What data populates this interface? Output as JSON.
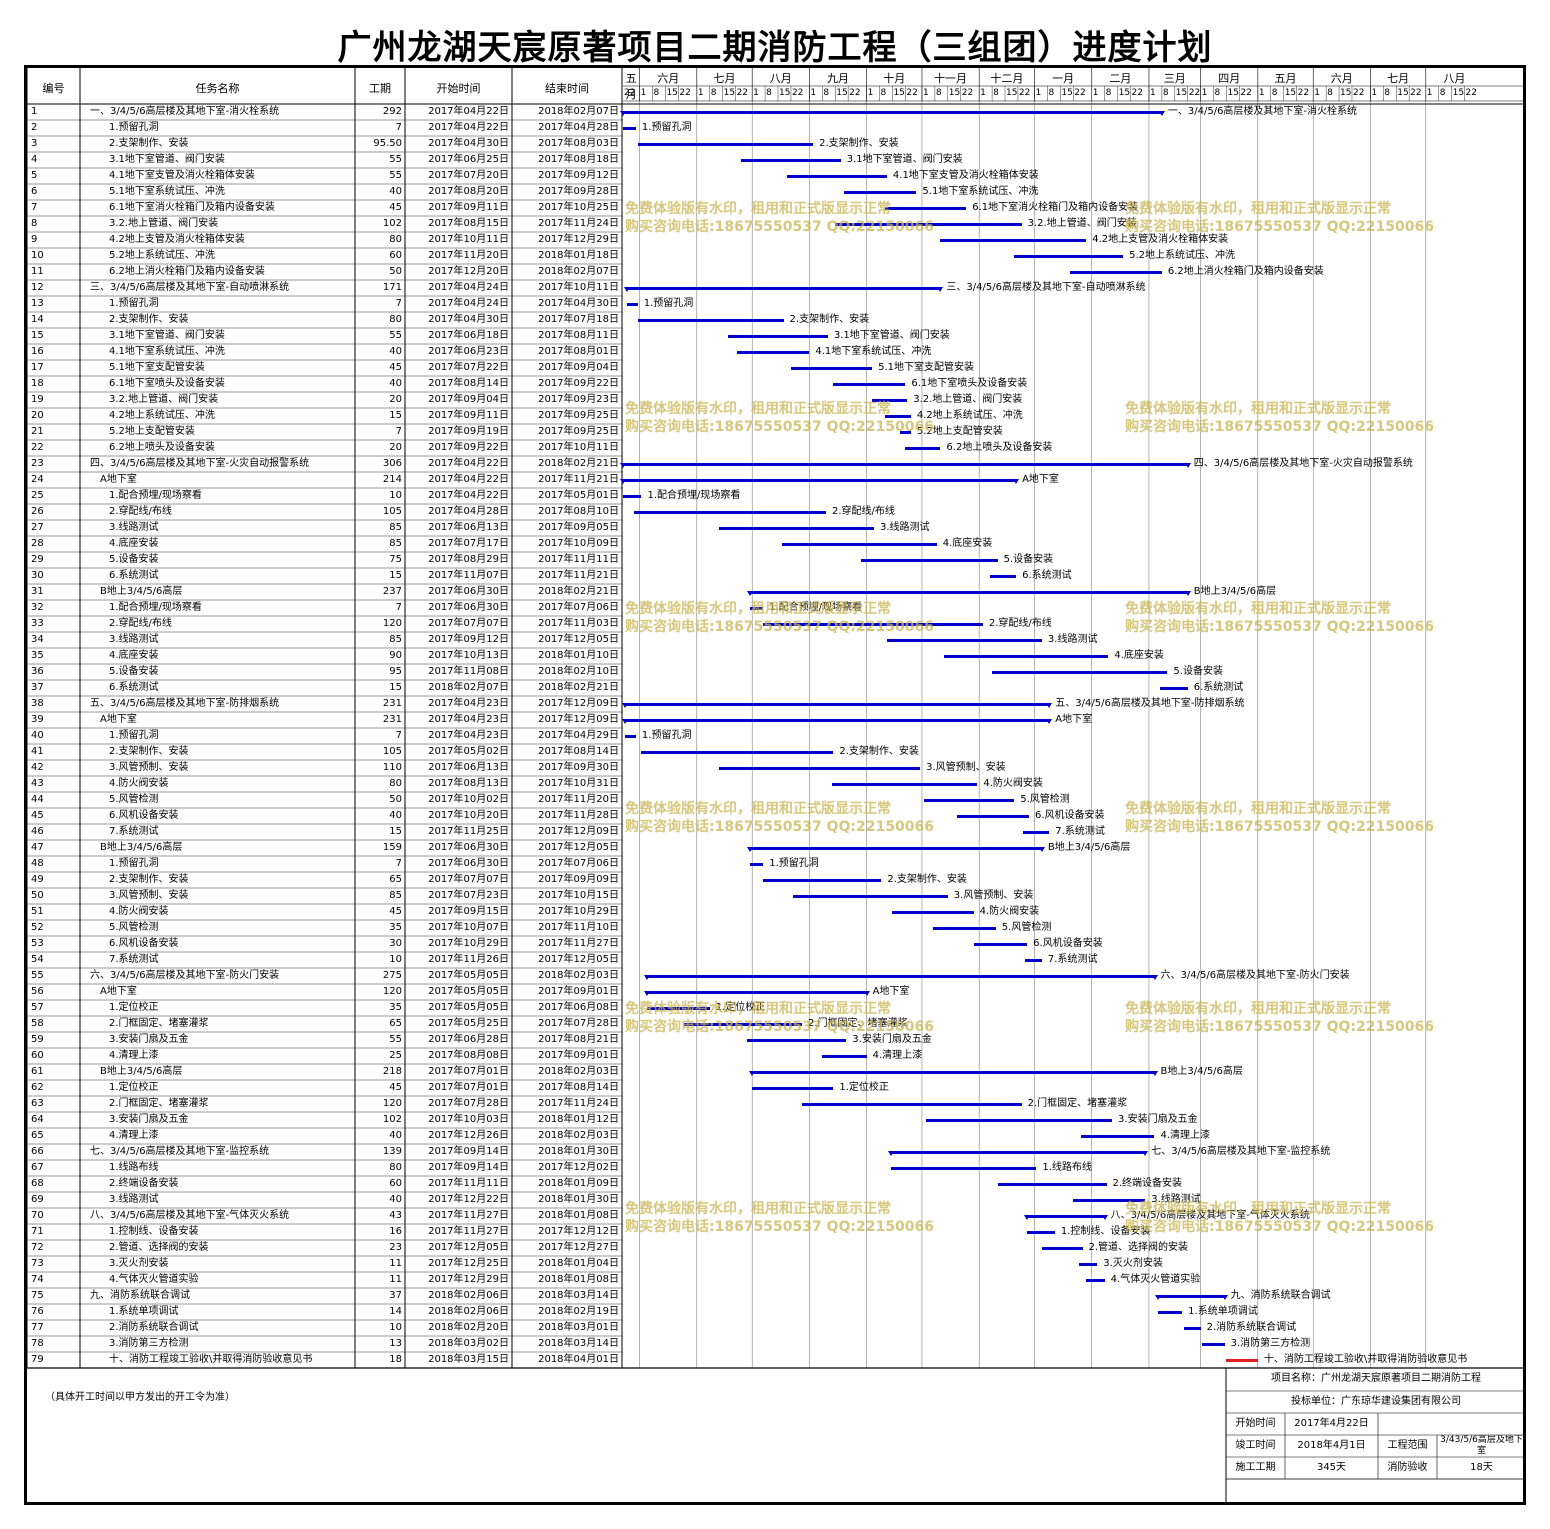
{
  "title": "广州龙湖天宸原著项目二期消防工程（三组团）进度计划",
  "columns": {
    "id": "编号",
    "name": "任务名称",
    "duration": "工期",
    "start": "开始时间",
    "end": "结束时间"
  },
  "months": [
    "五月",
    "六月",
    "七月",
    "八月",
    "九月",
    "十月",
    "十一月",
    "十二月",
    "一月",
    "二月",
    "三月",
    "四月",
    "五月",
    "六月",
    "七月",
    "八月"
  ],
  "week_ticks": [
    "22",
    "1",
    "8",
    "15",
    "22"
  ],
  "tasks": [
    [
      "1",
      "一、3/4/5/6高层楼及其地下室-消火栓系统",
      "292",
      "2017年04月22日",
      "2018年02月07日",
      0,
      292,
      "sum"
    ],
    [
      "2",
      "1.预留孔洞",
      "7",
      "2017年04月22日",
      "2017年04月28日",
      0,
      7,
      ""
    ],
    [
      "3",
      "2.支架制作、安装",
      "95.50",
      "2017年04月30日",
      "2017年08月03日",
      8,
      103,
      ""
    ],
    [
      "4",
      "3.1地下室管道、阀门安装",
      "55",
      "2017年06月25日",
      "2017年08月18日",
      64,
      118,
      ""
    ],
    [
      "5",
      "4.1地下室支管及消火栓箱体安装",
      "55",
      "2017年07月20日",
      "2017年09月12日",
      89,
      143,
      ""
    ],
    [
      "6",
      "5.1地下室系统试压、冲洗",
      "40",
      "2017年08月20日",
      "2017年09月28日",
      120,
      159,
      ""
    ],
    [
      "7",
      "6.1地下室消火栓箱门及箱内设备安装",
      "45",
      "2017年09月11日",
      "2017年10月25日",
      142,
      186,
      ""
    ],
    [
      "8",
      "3.2.地上管道、阀门安装",
      "102",
      "2017年08月15日",
      "2017年11月24日",
      115,
      216,
      ""
    ],
    [
      "9",
      "4.2地上支管及消火栓箱体安装",
      "80",
      "2017年10月11日",
      "2017年12月29日",
      172,
      251,
      ""
    ],
    [
      "10",
      "5.2地上系统试压、冲洗",
      "60",
      "2017年11月20日",
      "2018年01月18日",
      212,
      271,
      ""
    ],
    [
      "11",
      "6.2地上消火栓箱门及箱内设备安装",
      "50",
      "2017年12月20日",
      "2018年02月07日",
      242,
      292,
      ""
    ],
    [
      "12",
      "三、3/4/5/6高层楼及其地下室-自动喷淋系统",
      "171",
      "2017年04月24日",
      "2017年10月11日",
      2,
      172,
      "sum"
    ],
    [
      "13",
      "1.预留孔洞",
      "7",
      "2017年04月24日",
      "2017年04月30日",
      2,
      8,
      ""
    ],
    [
      "14",
      "2.支架制作、安装",
      "80",
      "2017年04月30日",
      "2017年07月18日",
      8,
      87,
      ""
    ],
    [
      "15",
      "3.1地下室管道、阀门安装",
      "55",
      "2017年06月18日",
      "2017年08月11日",
      57,
      111,
      ""
    ],
    [
      "16",
      "4.1地下室系统试压、冲洗",
      "40",
      "2017年06月23日",
      "2017年08月01日",
      62,
      101,
      ""
    ],
    [
      "17",
      "5.1地下室支配管安装",
      "45",
      "2017年07月22日",
      "2017年09月04日",
      91,
      135,
      ""
    ],
    [
      "18",
      "6.1地下室喷头及设备安装",
      "40",
      "2017年08月14日",
      "2017年09月22日",
      114,
      153,
      ""
    ],
    [
      "19",
      "3.2.地上管道、阀门安装",
      "20",
      "2017年09月04日",
      "2017年09月23日",
      135,
      154,
      ""
    ],
    [
      "20",
      "4.2地上系统试压、冲洗",
      "15",
      "2017年09月11日",
      "2017年09月25日",
      142,
      156,
      ""
    ],
    [
      "21",
      "5.2地上支配管安装",
      "7",
      "2017年09月19日",
      "2017年09月25日",
      150,
      156,
      ""
    ],
    [
      "22",
      "6.2地上喷头及设备安装",
      "20",
      "2017年09月22日",
      "2017年10月11日",
      153,
      172,
      ""
    ],
    [
      "23",
      "四、3/4/5/6高层楼及其地下室-火灾自动报警系统",
      "306",
      "2017年04月22日",
      "2018年02月21日",
      0,
      306,
      "sum"
    ],
    [
      "24",
      "A地下室",
      "214",
      "2017年04月22日",
      "2017年11月21日",
      0,
      213,
      "sum"
    ],
    [
      "25",
      "1.配合预埋/现场察看",
      "10",
      "2017年04月22日",
      "2017年05月01日",
      0,
      10,
      ""
    ],
    [
      "26",
      "2.穿配线/布线",
      "105",
      "2017年04月28日",
      "2017年08月10日",
      6,
      110,
      ""
    ],
    [
      "27",
      "3.线路测试",
      "85",
      "2017年06月13日",
      "2017年09月05日",
      52,
      136,
      ""
    ],
    [
      "28",
      "4.底座安装",
      "85",
      "2017年07月17日",
      "2017年10月09日",
      86,
      170,
      ""
    ],
    [
      "29",
      "5.设备安装",
      "75",
      "2017年08月29日",
      "2017年11月11日",
      129,
      203,
      ""
    ],
    [
      "30",
      "6.系统测试",
      "15",
      "2017年11月07日",
      "2017年11月21日",
      199,
      213,
      ""
    ],
    [
      "31",
      "B地上3/4/5/6高层",
      "237",
      "2017年06月30日",
      "2018年02月21日",
      69,
      306,
      "sum"
    ],
    [
      "32",
      "1.配合预埋/现场察看",
      "7",
      "2017年06月30日",
      "2017年07月06日",
      69,
      76,
      ""
    ],
    [
      "33",
      "2.穿配线/布线",
      "120",
      "2017年07月07日",
      "2017年11月03日",
      76,
      195,
      ""
    ],
    [
      "34",
      "3.线路测试",
      "85",
      "2017年09月12日",
      "2017年12月05日",
      143,
      227,
      ""
    ],
    [
      "35",
      "4.底座安装",
      "90",
      "2017年10月13日",
      "2018年01月10日",
      174,
      263,
      ""
    ],
    [
      "36",
      "5.设备安装",
      "95",
      "2017年11月08日",
      "2018年02月10日",
      200,
      295,
      ""
    ],
    [
      "37",
      "6.系统测试",
      "15",
      "2018年02月07日",
      "2018年02月21日",
      291,
      306,
      ""
    ],
    [
      "38",
      "五、3/4/5/6高层楼及其地下室-防排烟系统",
      "231",
      "2017年04月23日",
      "2017年12月09日",
      1,
      231,
      "sum"
    ],
    [
      "39",
      "A地下室",
      "231",
      "2017年04月23日",
      "2017年12月09日",
      1,
      231,
      "sum"
    ],
    [
      "40",
      "1.预留孔洞",
      "7",
      "2017年04月23日",
      "2017年04月29日",
      1,
      7,
      ""
    ],
    [
      "41",
      "2.支架制作、安装",
      "105",
      "2017年05月02日",
      "2017年08月14日",
      10,
      114,
      ""
    ],
    [
      "42",
      "3.风管预制、安装",
      "110",
      "2017年06月13日",
      "2017年09月30日",
      52,
      161,
      ""
    ],
    [
      "43",
      "4.防火阀安装",
      "80",
      "2017年08月13日",
      "2017年10月31日",
      113,
      192,
      ""
    ],
    [
      "44",
      "5.风管检测",
      "50",
      "2017年10月02日",
      "2017年11月20日",
      163,
      212,
      ""
    ],
    [
      "45",
      "6.风机设备安装",
      "40",
      "2017年10月20日",
      "2017年11月28日",
      181,
      220,
      ""
    ],
    [
      "46",
      "7.系统测试",
      "15",
      "2017年11月25日",
      "2017年12月09日",
      217,
      231,
      ""
    ],
    [
      "47",
      "B地上3/4/5/6高层",
      "159",
      "2017年06月30日",
      "2017年12月05日",
      69,
      227,
      "sum"
    ],
    [
      "48",
      "1.预留孔洞",
      "7",
      "2017年06月30日",
      "2017年07月06日",
      69,
      76,
      ""
    ],
    [
      "49",
      "2.支架制作、安装",
      "65",
      "2017年07月07日",
      "2017年09月09日",
      76,
      140,
      ""
    ],
    [
      "50",
      "3.风管预制、安装",
      "85",
      "2017年07月23日",
      "2017年10月15日",
      92,
      176,
      ""
    ],
    [
      "51",
      "4.防火阀安装",
      "45",
      "2017年09月15日",
      "2017年10月29日",
      146,
      190,
      ""
    ],
    [
      "52",
      "5.风管检测",
      "35",
      "2017年10月07日",
      "2017年11月10日",
      168,
      202,
      ""
    ],
    [
      "53",
      "6.风机设备安装",
      "30",
      "2017年10月29日",
      "2017年11月27日",
      190,
      219,
      ""
    ],
    [
      "54",
      "7.系统测试",
      "10",
      "2017年11月26日",
      "2017年12月05日",
      218,
      227,
      ""
    ],
    [
      "55",
      "六、3/4/5/6高层楼及其地下室-防火门安装",
      "275",
      "2017年05月05日",
      "2018年02月03日",
      13,
      288,
      "sum"
    ],
    [
      "56",
      "A地下室",
      "120",
      "2017年05月05日",
      "2017年09月01日",
      13,
      132,
      "sum"
    ],
    [
      "57",
      "1.定位校正",
      "35",
      "2017年05月05日",
      "2017年06月08日",
      13,
      47,
      ""
    ],
    [
      "58",
      "2.门框固定、堵塞灌浆",
      "65",
      "2017年05月25日",
      "2017年07月28日",
      33,
      97,
      ""
    ],
    [
      "59",
      "3.安装门扇及五金",
      "55",
      "2017年06月28日",
      "2017年08月21日",
      67,
      121,
      ""
    ],
    [
      "60",
      "4.清理上漆",
      "25",
      "2017年08月08日",
      "2017年09月01日",
      108,
      132,
      ""
    ],
    [
      "61",
      "B地上3/4/5/6高层",
      "218",
      "2017年07月01日",
      "2018年02月03日",
      70,
      288,
      "sum"
    ],
    [
      "62",
      "1.定位校正",
      "45",
      "2017年07月01日",
      "2017年08月14日",
      70,
      114,
      ""
    ],
    [
      "63",
      "2.门框固定、堵塞灌浆",
      "120",
      "2017年07月28日",
      "2017年11月24日",
      97,
      216,
      ""
    ],
    [
      "64",
      "3.安装门扇及五金",
      "102",
      "2017年10月03日",
      "2018年01月12日",
      164,
      265,
      ""
    ],
    [
      "65",
      "4.清理上漆",
      "40",
      "2017年12月26日",
      "2018年02月03日",
      248,
      288,
      ""
    ],
    [
      "66",
      "七、3/4/5/6高层楼及其地下室-监控系统",
      "139",
      "2017年09月14日",
      "2018年01月30日",
      145,
      283,
      "sum"
    ],
    [
      "67",
      "1.线路布线",
      "80",
      "2017年09月14日",
      "2017年12月02日",
      145,
      224,
      ""
    ],
    [
      "68",
      "2.终端设备安装",
      "60",
      "2017年11月11日",
      "2018年01月09日",
      203,
      262,
      ""
    ],
    [
      "69",
      "3.线路测试",
      "40",
      "2017年12月22日",
      "2018年01月30日",
      244,
      283,
      ""
    ],
    [
      "70",
      "八、3/4/5/6高层楼及其地下室-气体灭火系统",
      "43",
      "2017年11月27日",
      "2018年01月08日",
      219,
      261,
      "sum"
    ],
    [
      "71",
      "1.控制线、设备安装",
      "16",
      "2017年11月27日",
      "2017年12月12日",
      219,
      234,
      ""
    ],
    [
      "72",
      "2.管道、选择阀的安装",
      "23",
      "2017年12月05日",
      "2017年12月27日",
      227,
      249,
      ""
    ],
    [
      "73",
      "3.灭火剂安装",
      "11",
      "2017年12月25日",
      "2018年01月04日",
      247,
      257,
      ""
    ],
    [
      "74",
      "4.气体灭火管道实验",
      "11",
      "2017年12月29日",
      "2018年01月08日",
      251,
      261,
      ""
    ],
    [
      "75",
      "九、消防系统联合调试",
      "37",
      "2018年02月06日",
      "2018年03月14日",
      290,
      326,
      "sum"
    ],
    [
      "76",
      "1.系统单项调试",
      "14",
      "2018年02月06日",
      "2018年02月19日",
      290,
      303,
      ""
    ],
    [
      "77",
      "2.消防系统联合调试",
      "10",
      "2018年02月20日",
      "2018年03月01日",
      304,
      313,
      ""
    ],
    [
      "78",
      "3.消防第三方检测",
      "13",
      "2018年03月02日",
      "2018年03月14日",
      314,
      326,
      ""
    ],
    [
      "79",
      "十、消防工程竣工验收\\并取得消防验收意见书",
      "18",
      "2018年03月15日",
      "2018年04月01日",
      327,
      344,
      "red"
    ]
  ],
  "watermark": {
    "line1": "免费体验版有水印，租用和正式版显示正常",
    "line2": "购买咨询电话:18675550537 QQ:22150066"
  },
  "note": "（具体开工时间以甲方发出的开工令为准）",
  "footer": {
    "project_label": "项目名称：广州龙湖天宸原著项目二期消防工程",
    "bidder_label": "投标单位：广东琼华建设集团有限公司",
    "start_label": "开始时间",
    "start_value": "2017年4月22日",
    "finish_label": "竣工时间",
    "finish_value": "2018年4月1日",
    "scope_label": "工程范围",
    "scope_value": "3/43/5/6高层及地下室",
    "duration_label": "施工工期",
    "duration_value": "345天",
    "acceptance_label": "消防验收",
    "acceptance_value": "18天"
  },
  "colors": {
    "bar": "#0000cc",
    "final_bar": "#e02020",
    "watermark": "#c8b450"
  }
}
